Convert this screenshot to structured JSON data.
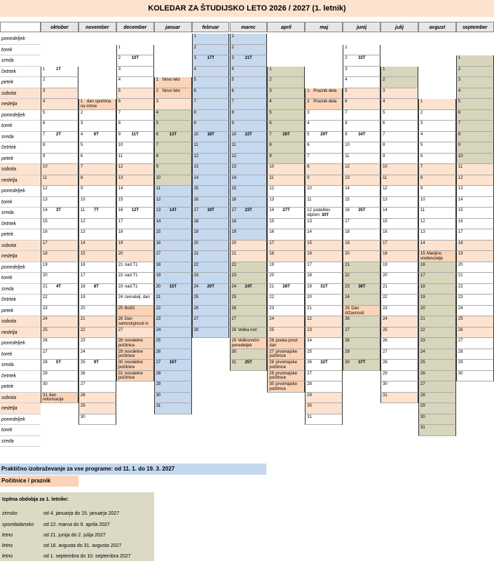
{
  "title": "KOLEDAR ZA ŠTUDIJSKO LETO 2026 / 2027 (1. letnik)",
  "months": [
    "oktober",
    "november",
    "december",
    "januar",
    "februar",
    "marec",
    "april",
    "maj",
    "junij",
    "julij",
    "avgust",
    "september"
  ],
  "days": [
    "ponedeljek",
    "torek",
    "sreda",
    "četrtek",
    "petek",
    "sobota",
    "nedelja"
  ],
  "colors": {
    "vacation": "#fbd3b6",
    "practical": "#c5d8ee",
    "exam": "#d7d5bb",
    "weekend": "#fde3cf"
  },
  "calendar": [
    {
      "m": "oktober",
      "start": 3,
      "days": 31,
      "weeks": {
        "7": "2T",
        "14": "3T",
        "21": "4T",
        "28": "5T",
        "1": "1T"
      },
      "notes": {
        "31": "dan reformacije"
      },
      "vac": [
        31
      ],
      "prac": [],
      "exam": []
    },
    {
      "m": "november",
      "start": 6,
      "days": 30,
      "weeks": {
        "4": "6T",
        "11": "7T",
        "18": "8T",
        "25": "9T"
      },
      "notes": {
        "1": "dan spomina na mrtve"
      },
      "vac": [
        1
      ],
      "prac": [],
      "exam": []
    },
    {
      "m": "december",
      "start": 1,
      "days": 31,
      "weeks": {
        "2": "10T",
        "9": "11T",
        "16": "12T"
      },
      "notes": {
        "21": "nad.T1",
        "22": "nad.T1",
        "23": "nad.T1",
        "24": "ravnatelj. dan",
        "25": "Božič",
        "26": "Dan samostojnosti in",
        "28": "novoletne počitnice",
        "29": "novoletne počitnice",
        "30": "novoletne počitnice",
        "31": "novoletne počitnice"
      },
      "vac": [
        25,
        26,
        28,
        29,
        30,
        31
      ],
      "prac": [],
      "exam": []
    },
    {
      "m": "januar",
      "start": 4,
      "days": 31,
      "weeks": {
        "6": "13T",
        "13": "14T",
        "20": "15T",
        "27": "16T"
      },
      "notes": {
        "1": "Novo leto",
        "2": "Novo leto"
      },
      "vac": [
        1,
        2
      ],
      "prac": [
        11,
        12,
        13,
        14,
        15,
        16,
        17,
        18,
        19,
        20,
        21,
        22,
        23,
        24,
        25,
        26,
        27,
        28,
        29,
        30,
        31
      ],
      "exam": [
        4,
        5,
        6,
        7,
        8,
        9,
        10,
        11,
        12,
        13,
        14,
        15
      ]
    },
    {
      "m": "februar",
      "start": 0,
      "days": 28,
      "weeks": {
        "3": "17T",
        "10": "18T",
        "17": "19T",
        "24": "20T"
      },
      "notes": {},
      "vac": [],
      "prac": [
        1,
        2,
        3,
        4,
        5,
        6,
        7,
        8,
        9,
        10,
        11,
        12,
        13,
        14,
        15,
        16,
        17,
        18,
        19,
        20,
        21,
        22,
        23,
        24,
        25,
        26,
        27,
        28
      ],
      "exam": []
    },
    {
      "m": "marec",
      "start": 0,
      "days": 31,
      "weeks": {
        "3": "21T",
        "10": "22T",
        "17": "23T",
        "24": "24T",
        "31": "25T"
      },
      "notes": {
        "28": "Velika noč",
        "29": "Velikonočni ponedeljek"
      },
      "vac": [
        29
      ],
      "prac": [
        1,
        2,
        3,
        4,
        5,
        6,
        7,
        8,
        9,
        10,
        11,
        12,
        13,
        14,
        15,
        16,
        17,
        18,
        19
      ],
      "exam": [
        22,
        23,
        24,
        25,
        26,
        27,
        28,
        29,
        30,
        31
      ]
    },
    {
      "m": "april",
      "start": 3,
      "days": 30,
      "weeks": {
        "7": "26T",
        "14": "27T",
        "21": "28T"
      },
      "notes": {
        "26": "pouka prost dan",
        "27": "prvomajske počitnice",
        "28": "prvomajske počitnice",
        "29": "prvomajske počitnice",
        "30": "prvomajske počitnice"
      },
      "vac": [
        26,
        27,
        28,
        29,
        30
      ],
      "prac": [],
      "exam": [
        1,
        2,
        3,
        4,
        5,
        6,
        7,
        8,
        9
      ]
    },
    {
      "m": "maj",
      "start": 5,
      "days": 31,
      "weeks": {
        "5": "29T",
        "12": "30T",
        "19": "31T",
        "26": "32T"
      },
      "notes": {
        "1": "Praznik dela",
        "2": "Praznik dela",
        "12": "podelitev diplom"
      },
      "vac": [
        1,
        2
      ],
      "prac": [],
      "exam": []
    },
    {
      "m": "junij",
      "start": 1,
      "days": 30,
      "weeks": {
        "2": "33T",
        "9": "34T",
        "16": "35T",
        "23": "36T",
        "30": "37T"
      },
      "notes": {
        "25": "Dan državnosti"
      },
      "vac": [
        25
      ],
      "prac": [],
      "exam": [
        21,
        22,
        23,
        24,
        25,
        26,
        27,
        28,
        29,
        30
      ]
    },
    {
      "m": "julij",
      "start": 3,
      "days": 31,
      "weeks": {},
      "notes": {},
      "vac": [],
      "prac": [],
      "exam": [
        1,
        2
      ]
    },
    {
      "m": "avgust",
      "start": 6,
      "days": 31,
      "weeks": {},
      "notes": {
        "15": "Marijino vnebovzetje"
      },
      "vac": [
        15
      ],
      "prac": [],
      "exam": [
        16,
        17,
        18,
        19,
        20,
        21,
        22,
        23,
        24,
        25,
        26,
        27,
        28,
        29,
        30,
        31
      ]
    },
    {
      "m": "september",
      "start": 2,
      "days": 30,
      "weeks": {},
      "notes": {},
      "vac": [],
      "prac": [],
      "exam": [
        1,
        2,
        3,
        4,
        5,
        6,
        7,
        8,
        9,
        10
      ]
    }
  ],
  "legend": {
    "practical": "Praktično izobraževanje za  vse programe: od 11. 1. do 19. 3. 2027",
    "vacation": "Počitnice / praznik"
  },
  "exam_periods": {
    "heading": "Izpitna obdobja za 1. letnike:",
    "rows": [
      {
        "label": "zimsko",
        "text": "od 4. januarja do 15. januarja 2027"
      },
      {
        "label": "spomladansko",
        "text": "od 22. marca do 9. aprila 2027"
      },
      {
        "label": "letno",
        "text": "od 21. junija do 2. julija 2027"
      },
      {
        "label": "letno",
        "text": "od 16. avgusta do 31. avgusta 2027"
      },
      {
        "label": "letno",
        "text": "od 1. septembra do 10. septembra 2027"
      }
    ]
  }
}
